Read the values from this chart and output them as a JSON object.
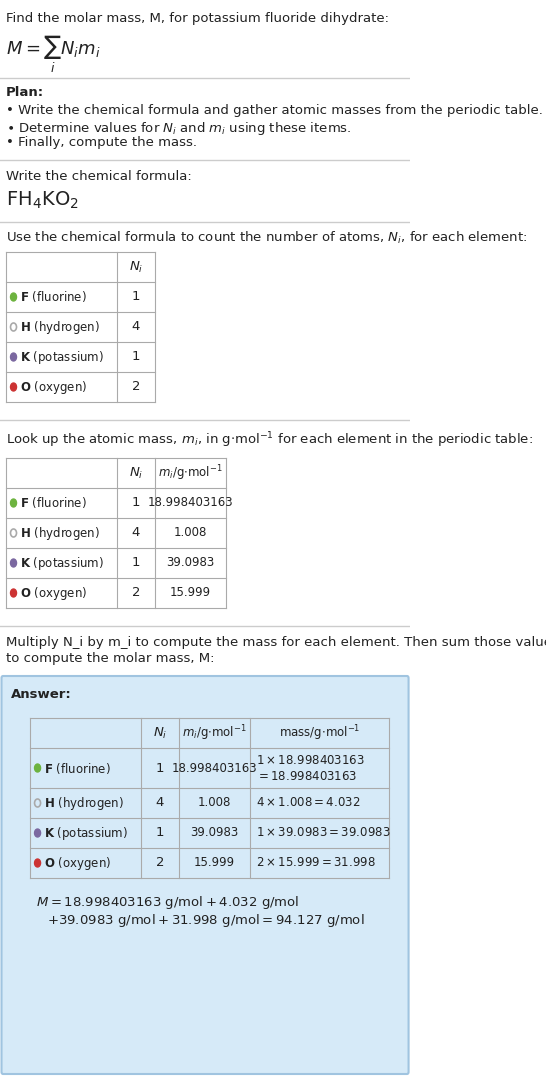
{
  "title_line": "Find the molar mass, M, for potassium fluoride dihydrate:",
  "plan_header": "Plan:",
  "plan_bullets": [
    "• Write the chemical formula and gather atomic masses from the periodic table.",
    "• Determine values for N_i and m_i using these items.",
    "• Finally, compute the mass."
  ],
  "step1_header": "Write the chemical formula:",
  "step2_header": "Use the chemical formula to count the number of atoms, N_i, for each element:",
  "step3_header": "Look up the atomic mass, m_i, in g·mol^(-1) for each element in the periodic table:",
  "step4_header_part1": "Multiply N_i by m_i to compute the mass for each element. Then sum those values",
  "step4_header_part2": "to compute the molar mass, M:",
  "elements": [
    {
      "symbol": "F",
      "name": "fluorine",
      "color": "#6db33f",
      "hollow": false,
      "N_i": 1,
      "m_i": "18.998403163"
    },
    {
      "symbol": "H",
      "name": "hydrogen",
      "color": "#aaaaaa",
      "hollow": true,
      "N_i": 4,
      "m_i": "1.008"
    },
    {
      "symbol": "K",
      "name": "potassium",
      "color": "#7b68a0",
      "hollow": false,
      "N_i": 1,
      "m_i": "39.0983"
    },
    {
      "symbol": "O",
      "name": "oxygen",
      "color": "#cc3333",
      "hollow": false,
      "N_i": 2,
      "m_i": "15.999"
    }
  ],
  "answer_box_color": "#d6eaf8",
  "answer_box_border": "#a0c4e0",
  "final_answer_line1": "M = 18.998403163 g/mol + 4.032 g/mol",
  "final_answer_line2": "+ 39.0983 g/mol + 31.998 g/mol = 94.127 g/mol",
  "bg_color": "#ffffff",
  "separator_color": "#cccccc",
  "table_border_color": "#aaaaaa"
}
